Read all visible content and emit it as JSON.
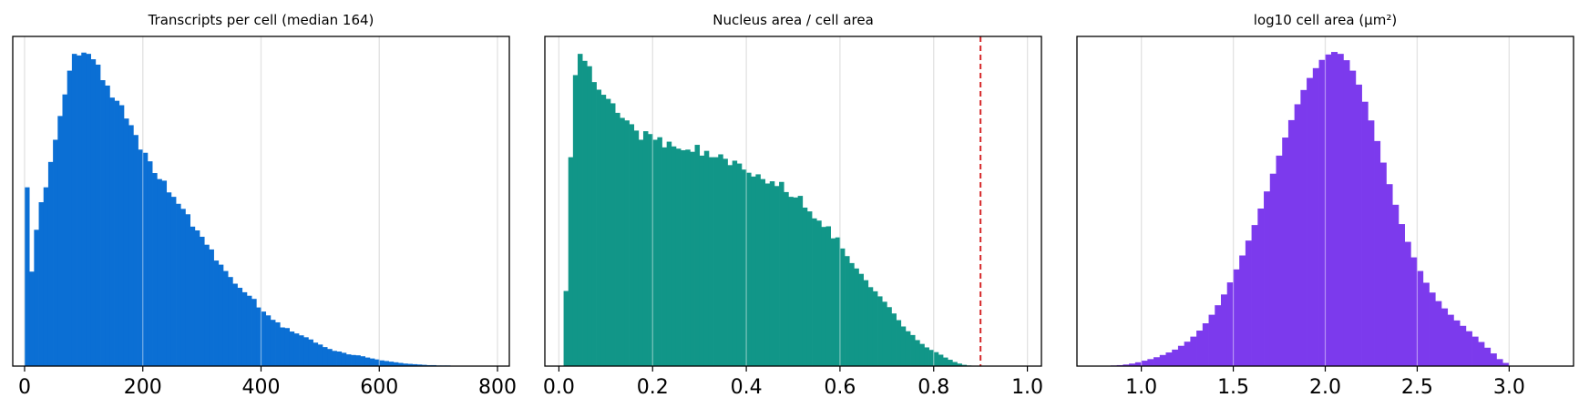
{
  "chart_data": [
    {
      "type": "bar",
      "title": "Transcripts per cell (median 164)",
      "color": "#0b6fd4",
      "xlim": [
        -20,
        820
      ],
      "ylim": [
        0,
        1.04
      ],
      "grid": "vertical",
      "y_ticks_shown": false,
      "xticks": [
        0,
        200,
        400,
        600,
        800
      ],
      "tick_labels": [
        "0",
        "200",
        "400",
        "600",
        "800"
      ],
      "bin_start": 0,
      "bin_width": 8,
      "values": [
        0.564,
        0.298,
        0.43,
        0.517,
        0.564,
        0.644,
        0.714,
        0.789,
        0.857,
        0.932,
        0.985,
        0.98,
        0.989,
        0.985,
        0.968,
        0.951,
        0.902,
        0.885,
        0.847,
        0.837,
        0.823,
        0.781,
        0.76,
        0.729,
        0.683,
        0.673,
        0.646,
        0.609,
        0.59,
        0.585,
        0.548,
        0.534,
        0.512,
        0.496,
        0.479,
        0.44,
        0.428,
        0.408,
        0.383,
        0.368,
        0.333,
        0.32,
        0.3,
        0.281,
        0.26,
        0.247,
        0.233,
        0.222,
        0.212,
        0.185,
        0.172,
        0.16,
        0.146,
        0.138,
        0.122,
        0.12,
        0.109,
        0.103,
        0.097,
        0.091,
        0.084,
        0.074,
        0.068,
        0.06,
        0.054,
        0.048,
        0.046,
        0.042,
        0.037,
        0.035,
        0.034,
        0.031,
        0.027,
        0.024,
        0.021,
        0.018,
        0.016,
        0.014,
        0.012,
        0.01,
        0.008,
        0.007,
        0.006,
        0.005,
        0.004,
        0.003,
        0.003,
        0.002,
        0.002,
        0.002,
        0.001,
        0.001,
        0.001,
        0.001,
        0.001,
        0.001,
        0.001,
        0.001,
        0.001,
        0.001
      ]
    },
    {
      "type": "bar",
      "title": "Nucleus area / cell area",
      "color": "#119688",
      "xlim": [
        -0.03,
        1.03
      ],
      "ylim": [
        0,
        1.04
      ],
      "grid": "vertical",
      "y_ticks_shown": false,
      "xticks": [
        0.0,
        0.2,
        0.4,
        0.6,
        0.8,
        1.0
      ],
      "tick_labels": [
        "0.0",
        "0.2",
        "0.4",
        "0.6",
        "0.8",
        "1.0"
      ],
      "reference_line": {
        "x": 0.9,
        "color": "#d62728",
        "style": "dashed"
      },
      "bin_start": 0.01,
      "bin_width": 0.01,
      "values": [
        0.237,
        0.659,
        0.918,
        0.985,
        0.963,
        0.946,
        0.896,
        0.872,
        0.856,
        0.843,
        0.829,
        0.799,
        0.783,
        0.775,
        0.763,
        0.743,
        0.714,
        0.741,
        0.732,
        0.714,
        0.722,
        0.69,
        0.708,
        0.693,
        0.686,
        0.681,
        0.683,
        0.676,
        0.698,
        0.664,
        0.679,
        0.659,
        0.659,
        0.668,
        0.654,
        0.634,
        0.648,
        0.639,
        0.62,
        0.61,
        0.598,
        0.605,
        0.59,
        0.576,
        0.583,
        0.568,
        0.581,
        0.549,
        0.534,
        0.532,
        0.537,
        0.5,
        0.488,
        0.466,
        0.459,
        0.439,
        0.441,
        0.403,
        0.406,
        0.371,
        0.347,
        0.325,
        0.308,
        0.291,
        0.271,
        0.249,
        0.236,
        0.22,
        0.203,
        0.186,
        0.166,
        0.145,
        0.125,
        0.11,
        0.098,
        0.082,
        0.07,
        0.059,
        0.051,
        0.044,
        0.036,
        0.027,
        0.02,
        0.013,
        0.008,
        0.004,
        0.002,
        0.001,
        0.001,
        0.001
      ]
    },
    {
      "type": "bar",
      "title": "log10 cell area (μm²)",
      "color": "#7c3aed",
      "xlim": [
        0.65,
        3.35
      ],
      "ylim": [
        0,
        1.04
      ],
      "grid": "vertical",
      "y_ticks_shown": false,
      "xticks": [
        1.0,
        1.5,
        2.0,
        2.5,
        3.0
      ],
      "tick_labels": [
        "1.0",
        "1.5",
        "2.0",
        "2.5",
        "3.0"
      ],
      "bin_start": 0.8,
      "bin_width": 0.0333,
      "values": [
        0.001,
        0.002,
        0.003,
        0.005,
        0.008,
        0.012,
        0.017,
        0.022,
        0.028,
        0.035,
        0.043,
        0.052,
        0.064,
        0.077,
        0.093,
        0.112,
        0.135,
        0.162,
        0.192,
        0.226,
        0.264,
        0.305,
        0.349,
        0.396,
        0.445,
        0.497,
        0.551,
        0.607,
        0.664,
        0.721,
        0.776,
        0.826,
        0.871,
        0.909,
        0.94,
        0.966,
        0.983,
        0.991,
        0.985,
        0.965,
        0.932,
        0.888,
        0.834,
        0.775,
        0.71,
        0.642,
        0.574,
        0.509,
        0.448,
        0.392,
        0.343,
        0.3,
        0.263,
        0.232,
        0.205,
        0.182,
        0.162,
        0.144,
        0.127,
        0.11,
        0.093,
        0.076,
        0.058,
        0.04,
        0.022,
        0.01
      ]
    }
  ]
}
